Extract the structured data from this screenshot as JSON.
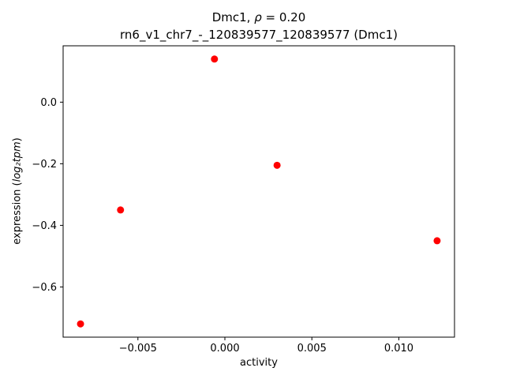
{
  "figure": {
    "title_line1": {
      "prefix": "Dmc1, ",
      "rho": "ρ",
      "rest": " = 0.20"
    },
    "title_line2": "rn6_v1_chr7_-_120839577_120839577 (Dmc1)",
    "xlabel": "activity",
    "ylabel": {
      "prefix": "expression (",
      "math": "log₂tpm",
      "suffix": ")"
    }
  },
  "chart_data": {
    "type": "scatter",
    "title": "Dmc1, ρ = 0.20\nrn6_v1_chr7_-_120839577_120839577 (Dmc1)",
    "xlabel": "activity",
    "ylabel": "expression (log2 tpm)",
    "marker_color": "#ff0000",
    "marker_size_px": 4.5,
    "points": [
      {
        "x": -0.0083,
        "y": -0.72
      },
      {
        "x": -0.006,
        "y": -0.35
      },
      {
        "x": -0.0006,
        "y": 0.14
      },
      {
        "x": 0.003,
        "y": -0.205
      },
      {
        "x": 0.0122,
        "y": -0.45
      }
    ],
    "xlim": [
      -0.0093,
      0.0132
    ],
    "ylim": [
      -0.763,
      0.183
    ],
    "xticks": {
      "positions": [
        -0.005,
        0.0,
        0.005,
        0.01
      ],
      "labels": [
        "−0.005",
        "0.000",
        "0.005",
        "0.010"
      ]
    },
    "yticks": {
      "positions": [
        0.0,
        -0.2,
        -0.4,
        -0.6
      ],
      "labels": [
        "0.0",
        "−0.2",
        "−0.4",
        "−0.6"
      ]
    },
    "grid": false,
    "legend": null
  }
}
